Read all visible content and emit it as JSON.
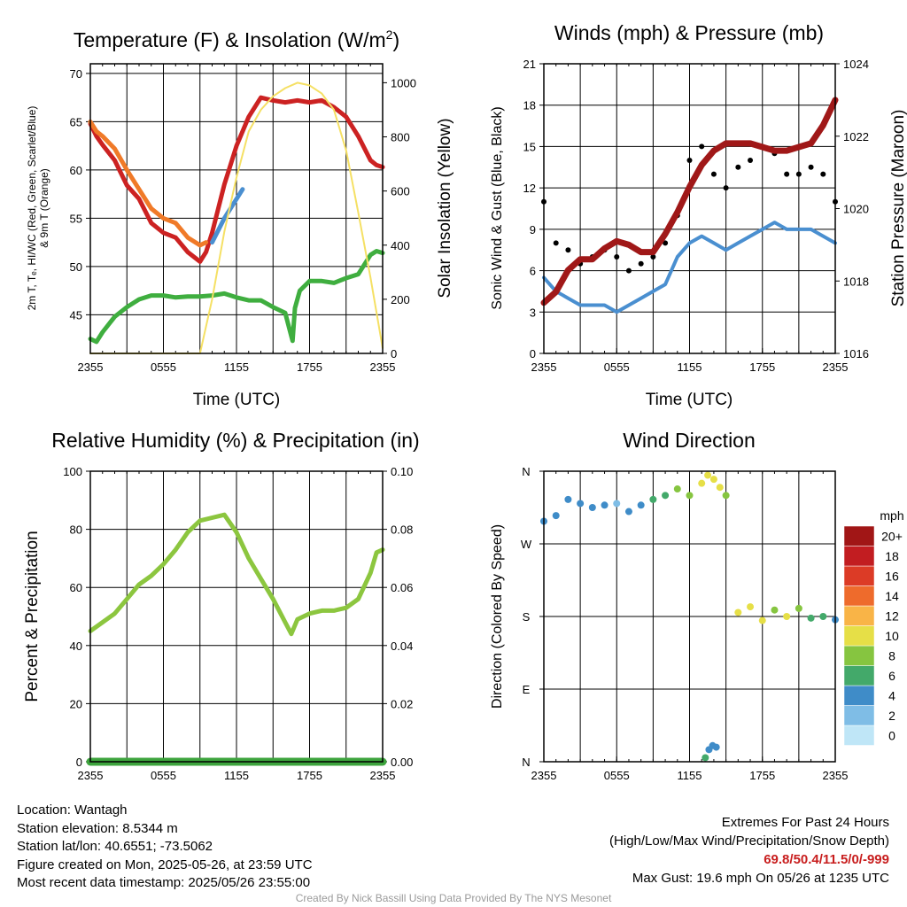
{
  "chart_data": [
    {
      "type": "line",
      "title": "Temperature (F) & Insolation (W/m",
      "title_sup": "2",
      "title_close": ")",
      "xlabel": "Time (UTC)",
      "ylabel_left_lines": [
        "2m T, Tₑ, HI/WC (Red, Green, Scarlet/Blue)",
        "& 9m T (Orange)"
      ],
      "ylabel_right": "Solar Insolation (Yellow)",
      "x_ticks": [
        "2355",
        "0555",
        "1155",
        "1755",
        "2355"
      ],
      "ylim_left": [
        41,
        71
      ],
      "yticks_left": [
        45,
        50,
        55,
        60,
        65,
        70
      ],
      "ylim_right": [
        0,
        1070
      ],
      "yticks_right": [
        0,
        200,
        400,
        600,
        800,
        1000
      ],
      "grid": true,
      "series": [
        {
          "color": "#cc2222",
          "axis": "left",
          "x": [
            0,
            0.5,
            1,
            2,
            3,
            4,
            5,
            6,
            7,
            8,
            9,
            9.5,
            10,
            11,
            12,
            13,
            14,
            15,
            16,
            17,
            18,
            19,
            20,
            21,
            22,
            23,
            23.5,
            24
          ],
          "y": [
            64.8,
            63.5,
            62.6,
            61,
            58.4,
            57,
            54.5,
            53.5,
            53,
            51.5,
            50.5,
            51.5,
            53.5,
            58.5,
            62.5,
            65.5,
            67.5,
            67.2,
            67,
            67.2,
            67,
            67.2,
            66.5,
            65.5,
            63.5,
            61,
            60.5,
            60.3
          ]
        },
        {
          "color": "#f07a28",
          "axis": "left",
          "x": [
            0,
            0.5,
            1,
            2,
            3,
            4,
            5,
            6,
            7,
            8,
            9,
            9.5
          ],
          "y": [
            65,
            64,
            63.5,
            62.2,
            60,
            58,
            56,
            55,
            54.5,
            53,
            52.2,
            52.5
          ]
        },
        {
          "color": "#3fae3f",
          "axis": "left",
          "x": [
            0,
            0.5,
            1,
            2,
            3,
            4,
            5,
            6,
            7,
            8,
            9,
            10,
            11,
            12,
            13,
            14,
            15,
            16,
            16.6,
            16.8,
            17.2,
            18,
            19,
            20,
            21,
            22,
            22.5,
            23,
            23.5,
            24
          ],
          "y": [
            42.5,
            42.2,
            43.2,
            44.8,
            45.8,
            46.6,
            47,
            47,
            46.8,
            46.9,
            46.9,
            47,
            47.2,
            46.8,
            46.5,
            46.5,
            45.8,
            45.2,
            42.3,
            45.7,
            47.5,
            48.5,
            48.5,
            48.3,
            48.8,
            49.2,
            50.2,
            51.2,
            51.6,
            51.4
          ]
        },
        {
          "color": "#4a8fd0",
          "axis": "left",
          "x": [
            10,
            11,
            12.5
          ],
          "y": [
            52.5,
            55,
            58
          ]
        },
        {
          "color": "#f5e064",
          "axis": "right",
          "x": [
            0,
            9,
            10,
            11,
            12,
            13,
            14,
            15,
            16,
            17,
            18,
            19,
            20,
            21,
            22,
            23,
            24
          ],
          "y": [
            0,
            0,
            200,
            450,
            650,
            820,
            900,
            950,
            980,
            1000,
            990,
            960,
            900,
            750,
            520,
            280,
            20
          ]
        }
      ]
    },
    {
      "type": "line",
      "title": "Winds (mph) & Pressure (mb)",
      "xlabel": "Time (UTC)",
      "ylabel_left": "Sonic Wind & Gust (Blue, Black)",
      "ylabel_right": "Station Pressure (Maroon)",
      "x_ticks": [
        "2355",
        "0555",
        "1155",
        "1755",
        "2355"
      ],
      "ylim_left": [
        0,
        21
      ],
      "yticks_left": [
        0,
        3,
        6,
        9,
        12,
        15,
        18,
        21
      ],
      "ylim_right": [
        1016,
        1024
      ],
      "yticks_right": [
        1016,
        1018,
        1020,
        1022,
        1024
      ],
      "grid": true,
      "series": [
        {
          "color": "#4a8fd0",
          "axis": "left",
          "x": [
            0,
            1,
            2,
            3,
            4,
            5,
            6,
            7,
            8,
            9,
            10,
            11,
            12,
            13,
            14,
            15,
            16,
            17,
            18,
            19,
            20,
            21,
            22,
            23,
            24
          ],
          "y": [
            5.5,
            4.5,
            4,
            3.5,
            3.5,
            3.5,
            3,
            3.5,
            4,
            4.5,
            5,
            7,
            8,
            8.5,
            8,
            7.5,
            8,
            8.5,
            9,
            9.5,
            9,
            9,
            9,
            8.5,
            8
          ]
        },
        {
          "color": "#000000",
          "axis": "left",
          "marker": "dot",
          "x": [
            0,
            1,
            2,
            3,
            4,
            5,
            6,
            7,
            8,
            9,
            10,
            11,
            12,
            13,
            14,
            15,
            16,
            17,
            18,
            19,
            20,
            21,
            22,
            23,
            24
          ],
          "y": [
            11,
            8,
            7.5,
            6.5,
            7,
            7.5,
            7,
            6,
            6.5,
            7,
            8,
            10,
            14,
            15,
            13,
            12,
            13.5,
            14,
            15,
            14.5,
            13,
            13,
            13.5,
            13,
            11
          ]
        },
        {
          "color": "#a01818",
          "axis": "right",
          "x": [
            0,
            1,
            2,
            3,
            4,
            5,
            6,
            7,
            8,
            9,
            10,
            11,
            12,
            13,
            14,
            15,
            16,
            17,
            18,
            19,
            20,
            21,
            22,
            23,
            24
          ],
          "y": [
            1017.4,
            1017.7,
            1018.3,
            1018.6,
            1018.6,
            1018.9,
            1019.1,
            1019.0,
            1018.8,
            1018.8,
            1019.3,
            1019.9,
            1020.6,
            1021.2,
            1021.6,
            1021.8,
            1021.8,
            1021.8,
            1021.7,
            1021.6,
            1021.6,
            1021.7,
            1021.8,
            1022.3,
            1023.0
          ]
        }
      ]
    },
    {
      "type": "line",
      "title": "Relative Humidity (%) & Precipitation (in)",
      "xlabel": "",
      "ylabel_left": "Percent & Precipitation",
      "x_ticks": [
        "2355",
        "0555",
        "1155",
        "1755",
        "2355"
      ],
      "ylim_left": [
        0,
        100
      ],
      "yticks_left": [
        0,
        20,
        40,
        60,
        80,
        100
      ],
      "ylim_right": [
        0,
        0.1
      ],
      "yticks_right": [
        "0.00",
        "0.02",
        "0.04",
        "0.06",
        "0.08",
        "0.10"
      ],
      "grid": true,
      "series": [
        {
          "color": "#8cc63f",
          "axis": "left",
          "x": [
            0,
            1,
            2,
            3,
            4,
            5,
            6,
            7,
            8,
            9,
            10,
            11,
            12,
            13,
            14,
            15,
            16,
            16.5,
            17,
            18,
            19,
            20,
            21,
            22,
            23,
            23.5,
            24
          ],
          "y": [
            45,
            48,
            51,
            56,
            61,
            64,
            68,
            73,
            79,
            83,
            84,
            85,
            79,
            70,
            63,
            56,
            48,
            44,
            49,
            51,
            52,
            52,
            53,
            56,
            65,
            72,
            73
          ]
        },
        {
          "color": "#3da43d",
          "axis": "left",
          "x": [
            0,
            24
          ],
          "y": [
            0,
            0
          ]
        }
      ]
    },
    {
      "type": "scatter",
      "title": "Wind Direction",
      "xlabel": "",
      "ylabel_left": "Direction (Colored By Speed)",
      "x_ticks": [
        "2355",
        "0555",
        "1155",
        "1755",
        "2355"
      ],
      "y_ticks": [
        "N",
        "E",
        "S",
        "W",
        "N"
      ],
      "ylim_left": [
        0,
        360
      ],
      "grid": true,
      "legend_title": "mph",
      "legend_levels": [
        "0",
        "2",
        "4",
        "6",
        "8",
        "10",
        "12",
        "14",
        "16",
        "18",
        "20+"
      ],
      "legend_colors": [
        "#bfe6f7",
        "#7fbde6",
        "#3f8cc8",
        "#43a96a",
        "#86c540",
        "#e6df47",
        "#f9b447",
        "#ee6b2c",
        "#dc3b26",
        "#c21d21",
        "#a11616"
      ],
      "series": [
        {
          "x": [
            0,
            1,
            2,
            3,
            4,
            5,
            6,
            7,
            8,
            9,
            10,
            11,
            12,
            13,
            13.5,
            14,
            14.5,
            15,
            16,
            17,
            18,
            19,
            20,
            21,
            22,
            23,
            24
          ],
          "y": [
            298,
            305,
            325,
            320,
            315,
            318,
            320,
            310,
            318,
            325,
            330,
            338,
            330,
            345,
            355,
            350,
            340,
            330,
            185,
            192,
            175,
            188,
            180,
            190,
            178,
            180,
            176
          ],
          "speed": [
            4,
            4,
            4,
            4,
            4,
            4,
            3,
            4,
            5,
            6,
            7,
            8,
            9,
            10,
            11,
            11,
            10,
            8,
            10,
            10,
            11,
            9,
            10,
            8,
            6,
            6,
            5
          ]
        },
        {
          "x": [
            13.3,
            13.6,
            13.9,
            14.2
          ],
          "y": [
            5,
            15,
            20,
            18
          ],
          "speed": [
            6,
            5,
            4,
            4
          ]
        }
      ]
    }
  ],
  "footer": {
    "location": "Location: Wantagh",
    "elevation": "Station elevation: 8.5344 m",
    "latlon": "Station lat/lon: 40.6551; -73.5062",
    "created": "Figure created on Mon, 2025-05-26, at 23:59 UTC",
    "recent": "Most recent data timestamp: 2025/05/26 23:55:00",
    "extremes_title": "Extremes For Past 24 Hours",
    "extremes_desc": "(High/Low/Max Wind/Precipitation/Snow Depth)",
    "extremes_values": "69.8/50.4/11.5/0/-999",
    "max_gust": "Max Gust: 19.6 mph On 05/26 at 1235 UTC",
    "credit": "Created By Nick Bassill Using Data Provided By The NYS Mesonet"
  }
}
